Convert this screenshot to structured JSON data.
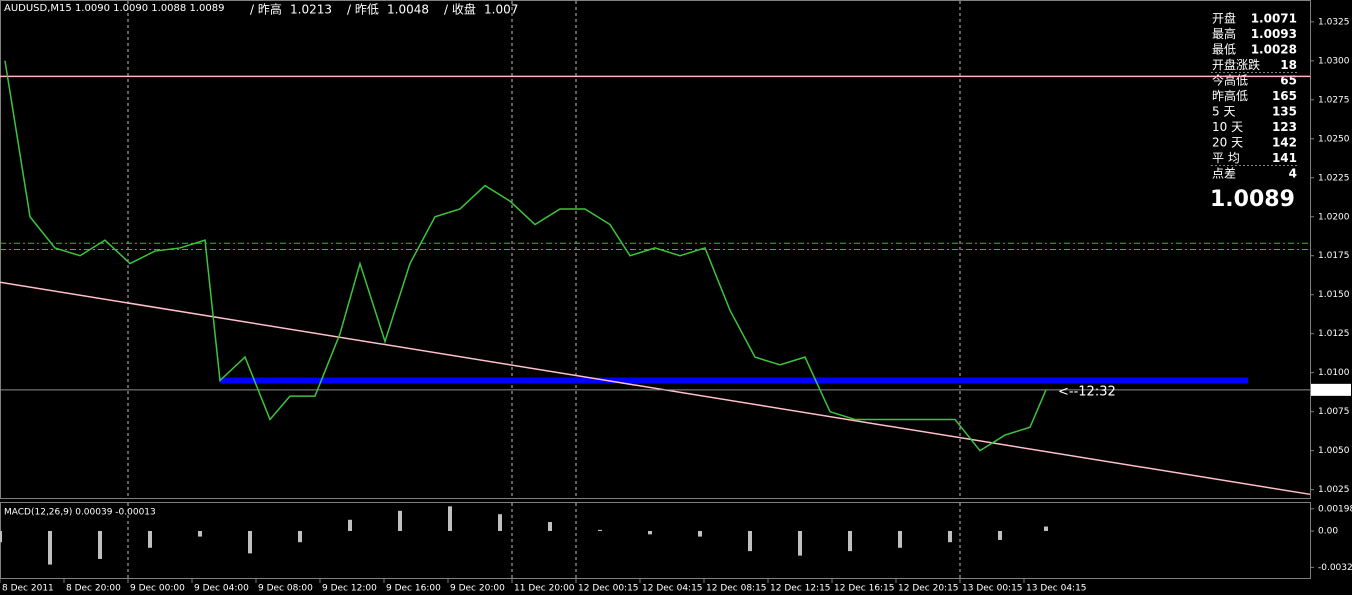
{
  "header": {
    "symbol": "AUDUSD,M15 1.0090 1.0090 1.0088 1.0089",
    "stats": [
      {
        "label": "/ 昨高",
        "value": 1.0213
      },
      {
        "label": "/ 昨低",
        "value": 1.0048
      },
      {
        "label": "/ 收盘",
        "value": 1.007
      }
    ]
  },
  "info_panel": {
    "rows": [
      {
        "label": "开盘",
        "value": 1.0071,
        "color": "#ffa500"
      },
      {
        "label": "最高",
        "value": 1.0093,
        "color": "#ffa500"
      },
      {
        "label": "最低",
        "value": 1.0028,
        "color": "#ffa500"
      },
      {
        "label": "开盘涨跌",
        "value": 18,
        "color": "#32cd32"
      },
      {
        "label": "今高低",
        "value": 65,
        "color": "#d4c15a"
      },
      {
        "label": "昨高低",
        "value": 165,
        "color": "#d4c15a"
      },
      {
        "label": "5 天",
        "value": 135,
        "color": "#d4c15a"
      },
      {
        "label": "10 天",
        "value": 123,
        "color": "#d4c15a"
      },
      {
        "label": "20 天",
        "value": 142,
        "color": "#d4c15a"
      },
      {
        "label": "平 均",
        "value": 141,
        "color": "#32cd32"
      },
      {
        "label": "点差",
        "value": 4,
        "color": "#ffd700"
      }
    ],
    "price": 1.0089
  },
  "chart_data": [
    {
      "type": "line",
      "color": "#3cc43c",
      "x": [
        1.25,
        7.5,
        13.75,
        20,
        26.25,
        32.5,
        38.75,
        45,
        51.25,
        55,
        61.25,
        67.5,
        72.5,
        78.75,
        85,
        90,
        96.25,
        102.5,
        108.75,
        115,
        121.25,
        127.5,
        133.75,
        140,
        146.25,
        152.5,
        157.5,
        163.75,
        170,
        176.25,
        182.5,
        188.75,
        195,
        201.25,
        207.5,
        213.75,
        220,
        226.25,
        232.5,
        238.75,
        245,
        251.25,
        257.5,
        261.5
      ],
      "values": [
        1.03,
        1.02,
        1.018,
        1.0175,
        1.0185,
        1.017,
        1.0178,
        1.018,
        1.0185,
        1.0095,
        1.011,
        1.007,
        1.0085,
        1.0085,
        1.0125,
        1.017,
        1.012,
        1.017,
        1.02,
        1.0205,
        1.022,
        1.021,
        1.0195,
        1.0205,
        1.0205,
        1.0195,
        1.0175,
        1.018,
        1.0175,
        1.018,
        1.014,
        1.011,
        1.0105,
        1.011,
        1.0075,
        1.007,
        1.007,
        1.007,
        1.007,
        1.007,
        1.005,
        1.006,
        1.0065,
        1.0089
      ],
      "xlim": [
        0,
        327.5
      ],
      "ylim": [
        1.0019,
        1.0339
      ],
      "yticks": [
        1.0325,
        {
          "value": 1.03,
          "label": "1.0300"
        },
        1.0275,
        {
          "value": 1.025,
          "label": "1.0250"
        },
        1.0225,
        {
          "value": 1.02,
          "label": "1.0200"
        },
        1.0175,
        {
          "value": 1.015,
          "label": "1.0150"
        },
        1.0125,
        {
          "value": 1.01,
          "label": "1.0100"
        },
        1.0075,
        {
          "value": 1.005,
          "label": "1.0050"
        },
        1.0025
      ],
      "current_price": 1.0089,
      "levels": [
        {
          "value": 1.029,
          "color": "#ffb6c1"
        },
        {
          "value": 1.0183,
          "color": "#3cb43c"
        },
        {
          "value": 1.0179,
          "color": "#3cb43c"
        }
      ],
      "blue_line": {
        "x": [
          55,
          312
        ],
        "value": 1.0095,
        "color": "#0000ff"
      },
      "trend_line": {
        "x": [
          0,
          327.5
        ],
        "values": [
          1.0158,
          1.0022
        ],
        "color": "#ffc0cb"
      },
      "annotation": "<--12:32",
      "xticks": [
        {
          "value": 0,
          "label": "8 Dec 2011"
        },
        {
          "value": 16,
          "label": "8 Dec 20:00"
        },
        {
          "value": 32,
          "label": "9 Dec 00:00"
        },
        {
          "value": 48,
          "label": "9 Dec 04:00"
        },
        {
          "value": 64,
          "label": "9 Dec 08:00"
        },
        {
          "value": 80,
          "label": "9 Dec 12:00"
        },
        {
          "value": 96,
          "label": "9 Dec 16:00"
        },
        {
          "value": 112,
          "label": "9 Dec 20:00"
        },
        {
          "value": 128,
          "label": "11 Dec 20:00"
        },
        {
          "value": 144,
          "label": "12 Dec 00:15"
        },
        {
          "value": 160,
          "label": "12 Dec 04:15"
        },
        {
          "value": 176,
          "label": "12 Dec 08:15"
        },
        {
          "value": 192,
          "label": "12 Dec 12:15"
        },
        {
          "value": 208,
          "label": "12 Dec 16:15"
        },
        {
          "value": 224,
          "label": "12 Dec 20:15"
        },
        {
          "value": 240,
          "label": "13 Dec 00:15"
        },
        {
          "value": 256,
          "label": "13 Dec 04:15"
        }
      ]
    },
    {
      "type": "bar",
      "title": "MACD(12,26,9) 0.00039 -0.00013",
      "color": "#c0c0c0",
      "x": [
        0,
        12.5,
        25,
        37.5,
        50,
        62.5,
        75,
        87.5,
        100,
        112.5,
        125,
        137.5,
        150,
        162.5,
        175,
        187.5,
        200,
        212.5,
        225,
        237.5,
        250,
        261.5
      ],
      "values": [
        -0.001,
        -0.003,
        -0.0025,
        -0.0015,
        -0.0005,
        -0.002,
        -0.001,
        0.001,
        0.0018,
        0.0022,
        0.0015,
        0.0008,
        0.0001,
        -0.0003,
        -0.0005,
        -0.0018,
        -0.0022,
        -0.0018,
        -0.0015,
        -0.001,
        -0.0008,
        0.0004
      ],
      "xlim": [
        0,
        327.5
      ],
      "ylim": [
        -0.0042,
        0.0025
      ],
      "yticks": [
        0.00198,
        {
          "value": 0,
          "label": "0.00"
        },
        -0.00325
      ]
    }
  ]
}
